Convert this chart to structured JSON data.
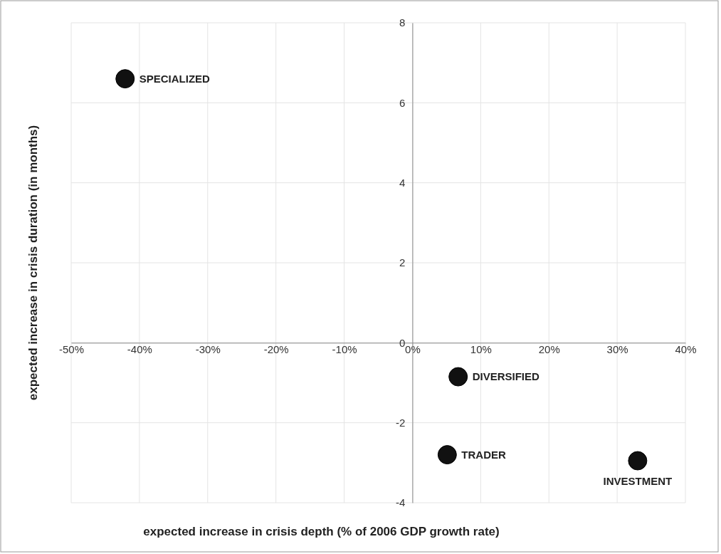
{
  "chart_data": {
    "type": "scatter",
    "xlabel": "expected increase in crisis depth (% of 2006 GDP growth rate)",
    "ylabel": "expected increase in crisis duration  (in months)",
    "x": [
      -42.1,
      6.7,
      5.1,
      33
    ],
    "series": [
      {
        "color": "#111111",
        "values": [
          6.6,
          -0.85,
          -2.8,
          -2.95
        ]
      }
    ],
    "xlim": [
      -50,
      40
    ],
    "ylim": [
      -4,
      8
    ],
    "xticks": [
      {
        "value": -50,
        "label": "-50%"
      },
      {
        "value": -40,
        "label": "-40%"
      },
      {
        "value": -30,
        "label": "-30%"
      },
      {
        "value": -20,
        "label": "-20%"
      },
      {
        "value": -10,
        "label": "-10%"
      },
      {
        "value": 0,
        "label": "0%"
      },
      {
        "value": 10,
        "label": "10%"
      },
      {
        "value": 20,
        "label": "20%"
      },
      {
        "value": 30,
        "label": "30%"
      },
      {
        "value": 40,
        "label": "40%"
      }
    ],
    "yticks": [
      -4,
      -2,
      0,
      2,
      4,
      6,
      8
    ],
    "grid": true,
    "marker": "circle",
    "annotations": [
      {
        "text": "SPECIALIZED",
        "x": -42.1,
        "y": 6.6
      },
      {
        "text": "DIVERSIFIED",
        "x": 6.7,
        "y": -0.85
      },
      {
        "text": "TRADER",
        "x": 5.1,
        "y": -2.8
      },
      {
        "text": "INVESTMENT",
        "x": 33,
        "y": -2.95
      }
    ]
  }
}
